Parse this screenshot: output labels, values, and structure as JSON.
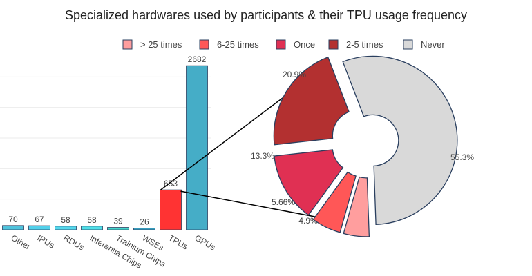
{
  "chart_data": [
    {
      "type": "bar",
      "title": "Specialized hardwares used by participants & their TPU usage frequency",
      "categories": [
        "Other",
        "IPUs",
        "RDUs",
        "Inferentia Chips",
        "Trainium Chips",
        "WSEs",
        "TPUs",
        "GPUs"
      ],
      "values": [
        70,
        67,
        58,
        58,
        39,
        26,
        653,
        2682
      ],
      "colors": [
        "#4fc3dc",
        "#52d0ea",
        "#55d8ec",
        "#50dfe8",
        "#45d6cc",
        "#3aa6c6",
        "#ff3333",
        "#45adc7"
      ],
      "highlight": "TPUs",
      "grid": true
    },
    {
      "type": "pie",
      "hole": true,
      "labels": [
        "> 25 times",
        "6-25 times",
        "Once",
        "2-5 times",
        "Never"
      ],
      "values": [
        4.9,
        5.66,
        13.3,
        20.9,
        55.3
      ],
      "value_labels": [
        "4.9%",
        "5.66%",
        "13.3%",
        "20.9%",
        "55.3%"
      ],
      "colors": [
        "#ff9e9e",
        "#ff5757",
        "#e03053",
        "#b33030",
        "#d9d9d9"
      ],
      "legend_order": [
        "> 25 times",
        "6-25 times",
        "Once",
        "2-5 times",
        "Never"
      ],
      "legend_position": "top"
    }
  ]
}
